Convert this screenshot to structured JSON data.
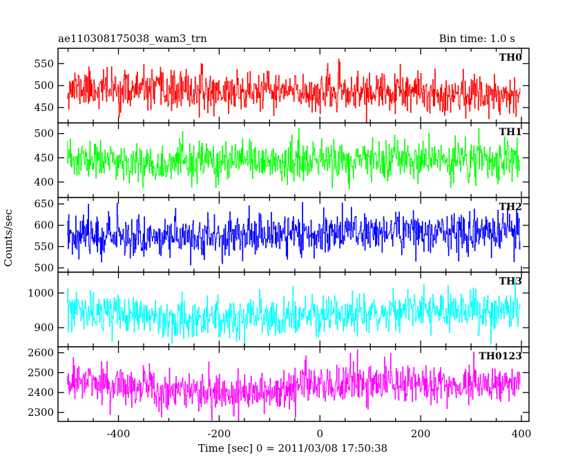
{
  "chart_data": {
    "type": "line",
    "title_left": "ae110308175038_wam3_trn",
    "title_right": "Bin time: 1.0 s",
    "xlabel": "Time [sec] 0 = 2011/03/08 17:50:38",
    "ylabel": "Counts/sec",
    "xlim": [
      -520,
      415
    ],
    "xticks": [
      -400,
      -200,
      0,
      200,
      400
    ],
    "x_start": -502,
    "x_end": 398,
    "bin": 1.0,
    "grid": false,
    "panels": [
      {
        "name": "TH0",
        "color": "#ff0000",
        "ylim": [
          415,
          585
        ],
        "yticks": [
          450,
          500,
          550
        ],
        "mean": [
          [
            -500,
            495
          ],
          [
            -300,
            487
          ],
          [
            -100,
            486
          ],
          [
            100,
            484
          ],
          [
            300,
            481
          ],
          [
            398,
            483
          ]
        ],
        "noise": 22,
        "seed": 11
      },
      {
        "name": "TH1",
        "color": "#00ff00",
        "ylim": [
          368,
          522
        ],
        "yticks": [
          400,
          450,
          500
        ],
        "mean": [
          [
            -500,
            445
          ],
          [
            -300,
            438
          ],
          [
            -100,
            442
          ],
          [
            100,
            444
          ],
          [
            300,
            444
          ],
          [
            398,
            446
          ]
        ],
        "noise": 20,
        "seed": 23
      },
      {
        "name": "TH2",
        "color": "#0000ff",
        "ylim": [
          490,
          665
        ],
        "yticks": [
          500,
          550,
          600,
          650
        ],
        "mean": [
          [
            -500,
            582
          ],
          [
            -300,
            572
          ],
          [
            -100,
            577
          ],
          [
            100,
            587
          ],
          [
            300,
            583
          ],
          [
            398,
            585
          ]
        ],
        "noise": 24,
        "seed": 37
      },
      {
        "name": "TH3",
        "color": "#00ffff",
        "ylim": [
          845,
          1060
        ],
        "yticks": [
          900,
          1000
        ],
        "mean": [
          [
            -500,
            948
          ],
          [
            -300,
            930
          ],
          [
            -100,
            923
          ],
          [
            100,
            945
          ],
          [
            300,
            947
          ],
          [
            398,
            950
          ]
        ],
        "noise": 28,
        "seed": 53
      },
      {
        "name": "TH0123",
        "color": "#ff00ff",
        "ylim": [
          2255,
          2630
        ],
        "yticks": [
          2300,
          2400,
          2500,
          2600
        ],
        "mean": [
          [
            -500,
            2462
          ],
          [
            -300,
            2410
          ],
          [
            -100,
            2405
          ],
          [
            0,
            2440
          ],
          [
            100,
            2448
          ],
          [
            300,
            2440
          ],
          [
            398,
            2450
          ]
        ],
        "noise": 50,
        "seed": 71
      }
    ]
  }
}
